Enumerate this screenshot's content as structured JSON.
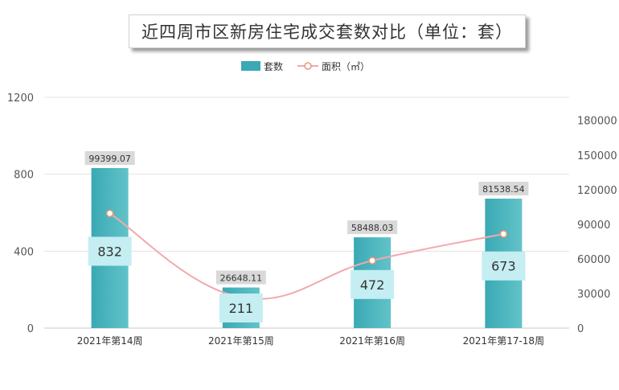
{
  "chart_data": {
    "type": "bar",
    "title": "近四周市区新房住宅成交套数对比（单位：套）",
    "categories": [
      "2021年第14周",
      "2021年第15周",
      "2021年第16周",
      "2021年第17-18周"
    ],
    "series": [
      {
        "name": "套数",
        "kind": "bar",
        "axis": "left",
        "values": [
          832,
          211,
          472,
          673
        ]
      },
      {
        "name": "面积（㎡）",
        "kind": "line",
        "axis": "right",
        "values": [
          99399.07,
          26648.11,
          58488.03,
          81538.54
        ]
      }
    ],
    "y_left": {
      "ticks": [
        0,
        400,
        800,
        1200
      ],
      "ylim": [
        0,
        1200
      ]
    },
    "y_right": {
      "ticks": [
        0,
        30000,
        60000,
        90000,
        120000,
        150000,
        180000
      ],
      "ylim": [
        0,
        200000
      ]
    },
    "grid": true,
    "legend": "top-center",
    "colors": {
      "bar_left": "#3aa9b4",
      "bar_right": "#62c3c9",
      "line": "#f2a9ad",
      "marker_fill": "#ffffff",
      "marker_stroke": "#e8967a",
      "label_box": "#d9d9d9",
      "value_box": "#c4eef2"
    }
  }
}
